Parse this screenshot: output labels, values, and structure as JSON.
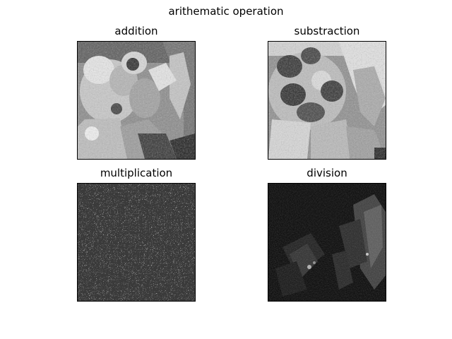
{
  "figure": {
    "title": "arithematic operation"
  },
  "panels": [
    {
      "title": "addition"
    },
    {
      "title": "substraction"
    },
    {
      "title": "multiplication"
    },
    {
      "title": "division"
    }
  ]
}
